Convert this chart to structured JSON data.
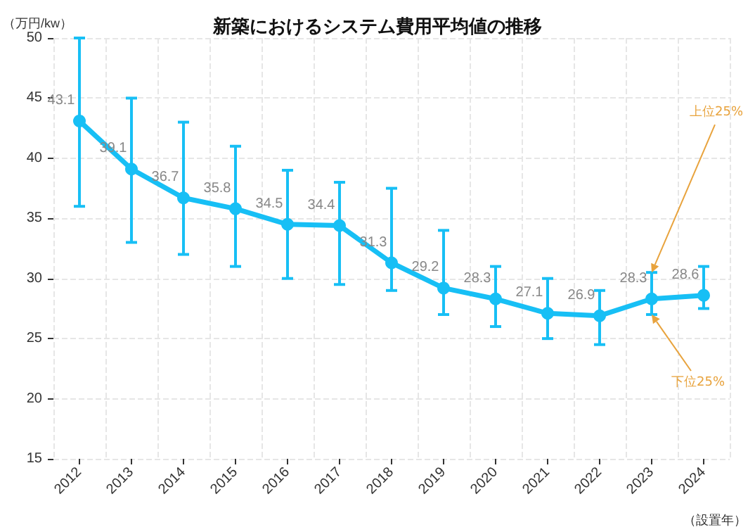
{
  "chart_data": {
    "type": "line",
    "title": "新築におけるシステム費用平均値の推移",
    "ylabel": "（万円/kw）",
    "xlabel": "（設置年）",
    "categories": [
      "2012",
      "2013",
      "2014",
      "2015",
      "2016",
      "2017",
      "2018",
      "2019",
      "2020",
      "2021",
      "2022",
      "2023",
      "2024"
    ],
    "series": [
      {
        "color": "#17bff5",
        "values": [
          43.1,
          39.1,
          36.7,
          35.8,
          34.5,
          34.4,
          31.3,
          29.2,
          28.3,
          27.1,
          26.9,
          28.3,
          28.6
        ],
        "errors": [
          [
            36,
            50
          ],
          [
            33,
            45
          ],
          [
            32,
            43
          ],
          [
            31,
            41
          ],
          [
            30,
            39
          ],
          [
            29.5,
            38
          ],
          [
            29,
            37.5
          ],
          [
            27,
            34
          ],
          [
            26,
            31
          ],
          [
            25,
            30
          ],
          [
            24.5,
            29
          ],
          [
            27,
            30.5
          ],
          [
            27.5,
            31
          ]
        ]
      }
    ],
    "ylim": [
      15,
      50
    ],
    "yticks": [
      15,
      20,
      25,
      30,
      35,
      40,
      45,
      50
    ],
    "grid": true,
    "marker": "circle",
    "line_style": "solid",
    "data_labels": true,
    "annotations": [
      {
        "text": "上位25%",
        "x": "2023",
        "y": 30.5
      },
      {
        "text": "下位25%",
        "x": "2023",
        "y": 27
      }
    ]
  }
}
